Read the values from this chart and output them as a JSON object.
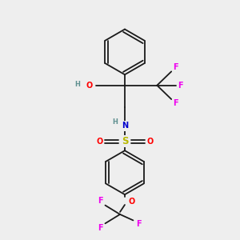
{
  "bg_color": "#eeeeee",
  "bond_color": "#1a1a1a",
  "atom_colors": {
    "O": "#ff0000",
    "N": "#0000cd",
    "S": "#b8b800",
    "F": "#ee00ee",
    "H": "#5f9090",
    "C": "#1a1a1a"
  },
  "figsize": [
    3.0,
    3.0
  ],
  "dpi": 100,
  "lw": 1.3,
  "fs": 7.0,
  "fs_s": 6.0
}
